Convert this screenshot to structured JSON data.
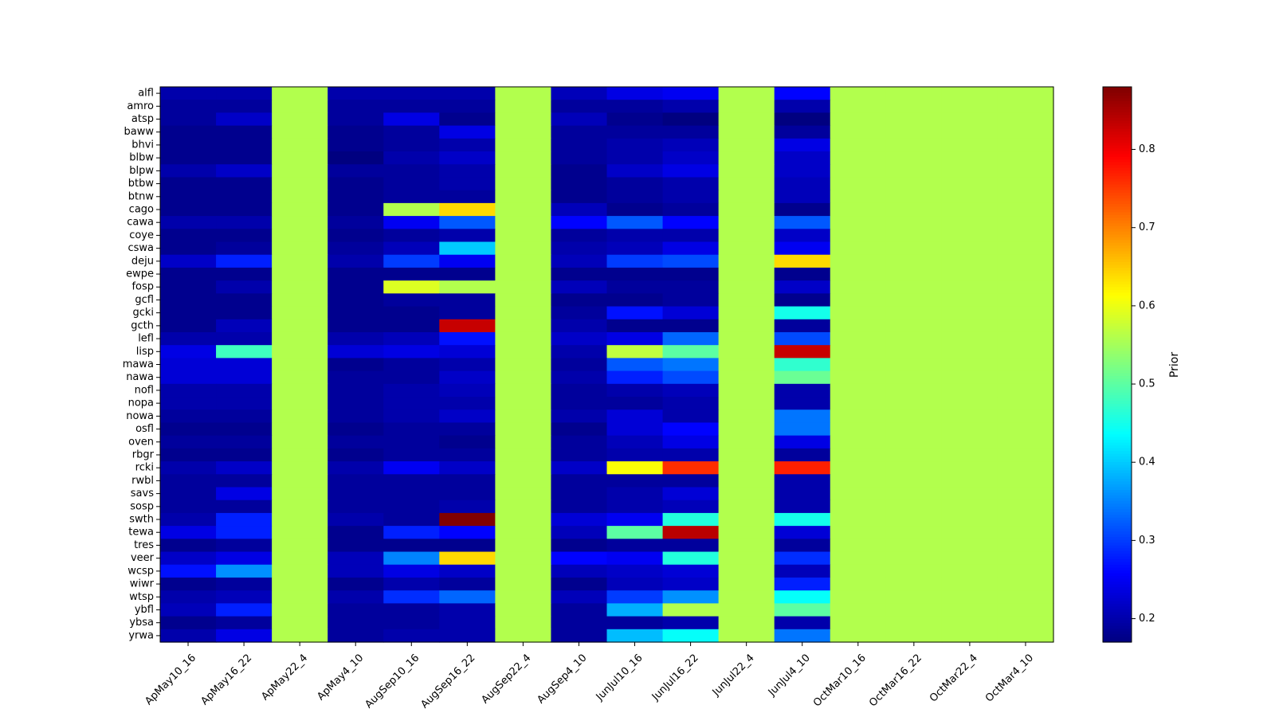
{
  "chart_data": {
    "type": "heatmap",
    "title": "",
    "xlabel": "",
    "ylabel": "",
    "colormap": "jet",
    "colorbar_label": "Prior",
    "colorbar_range": [
      0.17,
      0.88
    ],
    "colorbar_ticks": [
      0.2,
      0.3,
      0.4,
      0.5,
      0.6,
      0.7,
      0.8
    ],
    "x_labels": [
      "ApMay10_16",
      "ApMay16_22",
      "ApMay22_4",
      "ApMay4_10",
      "AugSep10_16",
      "AugSep16_22",
      "AugSep22_4",
      "AugSep4_10",
      "JunJul10_16",
      "JunJul16_22",
      "JunJul22_4",
      "JunJul4_10",
      "OctMar10_16",
      "OctMar16_22",
      "OctMar22_4",
      "OctMar4_10"
    ],
    "y_labels": [
      "alfl",
      "amro",
      "atsp",
      "baww",
      "bhvi",
      "blbw",
      "blpw",
      "btbw",
      "btnw",
      "cago",
      "cawa",
      "coye",
      "cswa",
      "deju",
      "ewpe",
      "fosp",
      "gcfl",
      "gcki",
      "gcth",
      "lefl",
      "lisp",
      "mawa",
      "nawa",
      "nofl",
      "nopa",
      "nowa",
      "osfl",
      "oven",
      "rbgr",
      "rcki",
      "rwbl",
      "savs",
      "sosp",
      "swth",
      "tewa",
      "tres",
      "veer",
      "wcsp",
      "wiwr",
      "wtsp",
      "ybfl",
      "ybsa",
      "yrwa"
    ],
    "uniform_value": 0.56,
    "values": [
      [
        0.2,
        0.2,
        0.56,
        0.2,
        0.2,
        0.2,
        0.56,
        0.21,
        0.24,
        0.25,
        0.56,
        0.26,
        0.56,
        0.56,
        0.56,
        0.56
      ],
      [
        0.19,
        0.19,
        0.56,
        0.19,
        0.19,
        0.19,
        0.56,
        0.19,
        0.19,
        0.2,
        0.56,
        0.2,
        0.56,
        0.56,
        0.56,
        0.56
      ],
      [
        0.19,
        0.22,
        0.56,
        0.19,
        0.24,
        0.18,
        0.56,
        0.21,
        0.18,
        0.17,
        0.56,
        0.17,
        0.56,
        0.56,
        0.56,
        0.56
      ],
      [
        0.18,
        0.18,
        0.56,
        0.18,
        0.19,
        0.24,
        0.56,
        0.19,
        0.19,
        0.19,
        0.56,
        0.19,
        0.56,
        0.56,
        0.56,
        0.56
      ],
      [
        0.18,
        0.18,
        0.56,
        0.18,
        0.19,
        0.2,
        0.56,
        0.19,
        0.2,
        0.21,
        0.56,
        0.24,
        0.56,
        0.56,
        0.56,
        0.56
      ],
      [
        0.18,
        0.18,
        0.56,
        0.17,
        0.2,
        0.22,
        0.56,
        0.19,
        0.2,
        0.22,
        0.56,
        0.22,
        0.56,
        0.56,
        0.56,
        0.56
      ],
      [
        0.2,
        0.22,
        0.56,
        0.19,
        0.19,
        0.2,
        0.56,
        0.18,
        0.22,
        0.24,
        0.56,
        0.22,
        0.56,
        0.56,
        0.56,
        0.56
      ],
      [
        0.18,
        0.18,
        0.56,
        0.18,
        0.19,
        0.2,
        0.56,
        0.18,
        0.19,
        0.2,
        0.56,
        0.21,
        0.56,
        0.56,
        0.56,
        0.56
      ],
      [
        0.18,
        0.18,
        0.56,
        0.18,
        0.19,
        0.19,
        0.56,
        0.18,
        0.19,
        0.2,
        0.56,
        0.21,
        0.56,
        0.56,
        0.56,
        0.56
      ],
      [
        0.18,
        0.18,
        0.56,
        0.18,
        0.56,
        0.64,
        0.56,
        0.21,
        0.18,
        0.19,
        0.56,
        0.18,
        0.56,
        0.56,
        0.56,
        0.56
      ],
      [
        0.2,
        0.2,
        0.56,
        0.19,
        0.25,
        0.32,
        0.56,
        0.26,
        0.32,
        0.26,
        0.56,
        0.32,
        0.56,
        0.56,
        0.56,
        0.56
      ],
      [
        0.18,
        0.18,
        0.56,
        0.18,
        0.19,
        0.2,
        0.56,
        0.19,
        0.2,
        0.2,
        0.56,
        0.22,
        0.56,
        0.56,
        0.56,
        0.56
      ],
      [
        0.18,
        0.19,
        0.56,
        0.19,
        0.21,
        0.4,
        0.56,
        0.2,
        0.21,
        0.24,
        0.56,
        0.25,
        0.56,
        0.56,
        0.56,
        0.56
      ],
      [
        0.22,
        0.28,
        0.56,
        0.2,
        0.3,
        0.25,
        0.56,
        0.21,
        0.3,
        0.31,
        0.56,
        0.64,
        0.56,
        0.56,
        0.56,
        0.56
      ],
      [
        0.18,
        0.18,
        0.56,
        0.18,
        0.18,
        0.18,
        0.56,
        0.18,
        0.18,
        0.18,
        0.56,
        0.18,
        0.56,
        0.56,
        0.56,
        0.56
      ],
      [
        0.18,
        0.2,
        0.56,
        0.18,
        0.59,
        0.56,
        0.56,
        0.21,
        0.19,
        0.19,
        0.56,
        0.22,
        0.56,
        0.56,
        0.56,
        0.56
      ],
      [
        0.18,
        0.18,
        0.56,
        0.18,
        0.19,
        0.19,
        0.56,
        0.18,
        0.18,
        0.19,
        0.56,
        0.18,
        0.56,
        0.56,
        0.56,
        0.56
      ],
      [
        0.18,
        0.18,
        0.56,
        0.18,
        0.18,
        0.19,
        0.56,
        0.19,
        0.27,
        0.23,
        0.56,
        0.45,
        0.56,
        0.56,
        0.56,
        0.56
      ],
      [
        0.18,
        0.21,
        0.56,
        0.18,
        0.18,
        0.83,
        0.56,
        0.2,
        0.18,
        0.18,
        0.56,
        0.19,
        0.56,
        0.56,
        0.56,
        0.56
      ],
      [
        0.2,
        0.2,
        0.56,
        0.2,
        0.21,
        0.27,
        0.56,
        0.22,
        0.24,
        0.33,
        0.56,
        0.31,
        0.56,
        0.56,
        0.56,
        0.56
      ],
      [
        0.24,
        0.48,
        0.56,
        0.23,
        0.24,
        0.23,
        0.56,
        0.2,
        0.57,
        0.5,
        0.56,
        0.83,
        0.56,
        0.56,
        0.56,
        0.56
      ],
      [
        0.23,
        0.23,
        0.56,
        0.18,
        0.19,
        0.2,
        0.56,
        0.19,
        0.32,
        0.34,
        0.56,
        0.47,
        0.56,
        0.56,
        0.56,
        0.56
      ],
      [
        0.23,
        0.23,
        0.56,
        0.19,
        0.19,
        0.22,
        0.56,
        0.2,
        0.28,
        0.31,
        0.56,
        0.51,
        0.56,
        0.56,
        0.56,
        0.56
      ],
      [
        0.2,
        0.2,
        0.56,
        0.19,
        0.2,
        0.21,
        0.56,
        0.19,
        0.2,
        0.21,
        0.56,
        0.2,
        0.56,
        0.56,
        0.56,
        0.56
      ],
      [
        0.2,
        0.2,
        0.56,
        0.19,
        0.2,
        0.2,
        0.56,
        0.19,
        0.19,
        0.2,
        0.56,
        0.2,
        0.56,
        0.56,
        0.56,
        0.56
      ],
      [
        0.19,
        0.19,
        0.56,
        0.19,
        0.2,
        0.22,
        0.56,
        0.2,
        0.23,
        0.2,
        0.56,
        0.34,
        0.56,
        0.56,
        0.56,
        0.56
      ],
      [
        0.18,
        0.18,
        0.56,
        0.18,
        0.19,
        0.19,
        0.56,
        0.18,
        0.23,
        0.26,
        0.56,
        0.34,
        0.56,
        0.56,
        0.56,
        0.56
      ],
      [
        0.19,
        0.19,
        0.56,
        0.19,
        0.19,
        0.18,
        0.56,
        0.19,
        0.21,
        0.24,
        0.56,
        0.24,
        0.56,
        0.56,
        0.56,
        0.56
      ],
      [
        0.18,
        0.18,
        0.56,
        0.18,
        0.19,
        0.19,
        0.56,
        0.19,
        0.2,
        0.2,
        0.56,
        0.19,
        0.56,
        0.56,
        0.56,
        0.56
      ],
      [
        0.2,
        0.22,
        0.56,
        0.2,
        0.25,
        0.22,
        0.56,
        0.22,
        0.61,
        0.76,
        0.56,
        0.77,
        0.56,
        0.56,
        0.56,
        0.56
      ],
      [
        0.19,
        0.19,
        0.56,
        0.19,
        0.19,
        0.19,
        0.56,
        0.19,
        0.19,
        0.19,
        0.56,
        0.2,
        0.56,
        0.56,
        0.56,
        0.56
      ],
      [
        0.19,
        0.24,
        0.56,
        0.19,
        0.19,
        0.19,
        0.56,
        0.19,
        0.2,
        0.23,
        0.56,
        0.2,
        0.56,
        0.56,
        0.56,
        0.56
      ],
      [
        0.19,
        0.19,
        0.56,
        0.19,
        0.19,
        0.2,
        0.56,
        0.19,
        0.2,
        0.21,
        0.56,
        0.2,
        0.56,
        0.56,
        0.56,
        0.56
      ],
      [
        0.2,
        0.28,
        0.56,
        0.2,
        0.19,
        0.88,
        0.56,
        0.23,
        0.25,
        0.46,
        0.56,
        0.45,
        0.56,
        0.56,
        0.56,
        0.56
      ],
      [
        0.24,
        0.28,
        0.56,
        0.18,
        0.28,
        0.26,
        0.56,
        0.21,
        0.5,
        0.84,
        0.56,
        0.23,
        0.56,
        0.56,
        0.56,
        0.56
      ],
      [
        0.18,
        0.19,
        0.56,
        0.18,
        0.18,
        0.18,
        0.56,
        0.18,
        0.19,
        0.19,
        0.56,
        0.19,
        0.56,
        0.56,
        0.56,
        0.56
      ],
      [
        0.22,
        0.24,
        0.56,
        0.21,
        0.35,
        0.64,
        0.56,
        0.26,
        0.25,
        0.46,
        0.56,
        0.29,
        0.56,
        0.56,
        0.56,
        0.56
      ],
      [
        0.27,
        0.36,
        0.56,
        0.21,
        0.24,
        0.22,
        0.56,
        0.21,
        0.22,
        0.23,
        0.56,
        0.21,
        0.56,
        0.56,
        0.56,
        0.56
      ],
      [
        0.18,
        0.19,
        0.56,
        0.18,
        0.2,
        0.19,
        0.56,
        0.18,
        0.21,
        0.22,
        0.56,
        0.28,
        0.56,
        0.56,
        0.56,
        0.56
      ],
      [
        0.2,
        0.21,
        0.56,
        0.2,
        0.29,
        0.33,
        0.56,
        0.21,
        0.3,
        0.36,
        0.56,
        0.44,
        0.56,
        0.56,
        0.56,
        0.56
      ],
      [
        0.21,
        0.28,
        0.56,
        0.19,
        0.19,
        0.2,
        0.56,
        0.19,
        0.38,
        0.56,
        0.56,
        0.5,
        0.56,
        0.56,
        0.56,
        0.56
      ],
      [
        0.18,
        0.19,
        0.56,
        0.19,
        0.19,
        0.2,
        0.56,
        0.19,
        0.19,
        0.2,
        0.56,
        0.2,
        0.56,
        0.56,
        0.56,
        0.56
      ],
      [
        0.2,
        0.24,
        0.56,
        0.19,
        0.2,
        0.2,
        0.56,
        0.19,
        0.39,
        0.44,
        0.56,
        0.34,
        0.56,
        0.56,
        0.56,
        0.56
      ]
    ]
  }
}
